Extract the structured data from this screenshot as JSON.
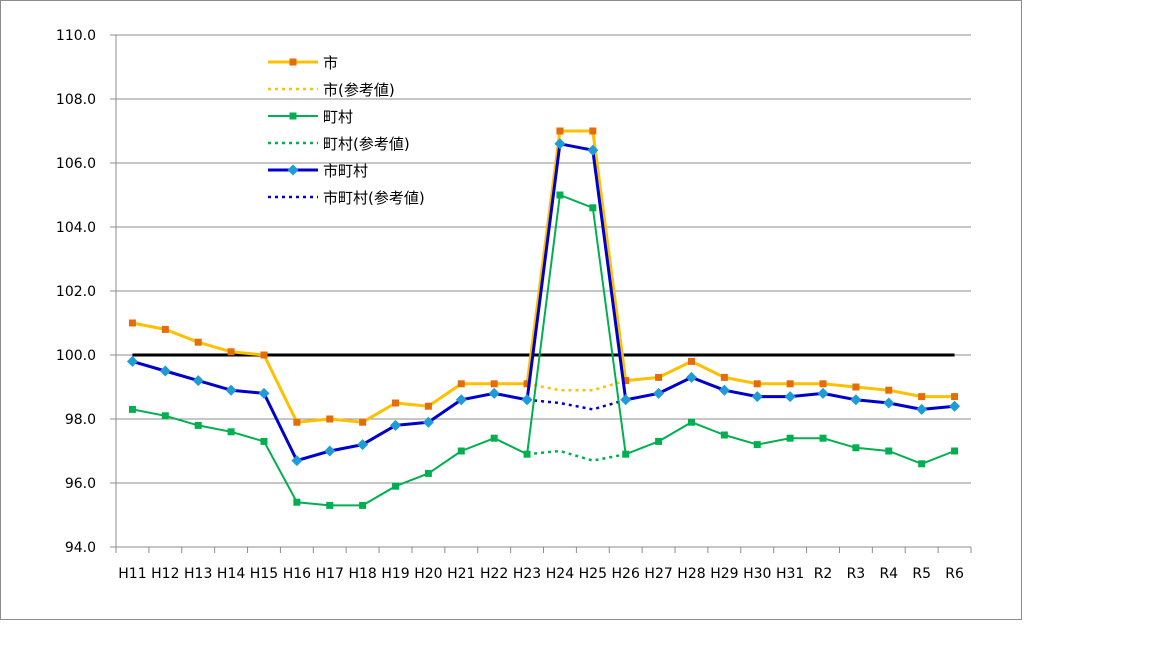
{
  "chart_data": {
    "type": "line",
    "title": "",
    "xlabel": "",
    "ylabel": "",
    "ylim": [
      94.0,
      110.0
    ],
    "yticks": [
      "94.0",
      "96.0",
      "98.0",
      "100.0",
      "102.0",
      "104.0",
      "106.0",
      "108.0",
      "110.0"
    ],
    "grid": true,
    "legend_position": "top-left-inside",
    "categories": [
      "H11",
      "H12",
      "H13",
      "H14",
      "H15",
      "H16",
      "H17",
      "H18",
      "H19",
      "H20",
      "H21",
      "H22",
      "H23",
      "H24",
      "H25",
      "H26",
      "H27",
      "H28",
      "H29",
      "H30",
      "H31",
      "R2",
      "R3",
      "R4",
      "R5",
      "R6"
    ],
    "reference_line": {
      "y": 100.0,
      "color": "#000000"
    },
    "series": [
      {
        "name": "市",
        "color": "#ffc000",
        "marker_color": "#e46c0a",
        "style": "solid",
        "marker": "square",
        "values": [
          101.0,
          100.8,
          100.4,
          100.1,
          100.0,
          97.9,
          98.0,
          97.9,
          98.5,
          98.4,
          99.1,
          99.1,
          99.1,
          107.0,
          107.0,
          99.2,
          99.3,
          99.8,
          99.3,
          99.1,
          99.1,
          99.1,
          99.0,
          98.9,
          98.7,
          98.7
        ]
      },
      {
        "name": "市(参考値)",
        "color": "#ffc000",
        "style": "dotted",
        "values": [
          null,
          null,
          null,
          null,
          null,
          null,
          null,
          null,
          null,
          null,
          null,
          null,
          99.1,
          98.9,
          98.9,
          99.2,
          null,
          null,
          null,
          null,
          null,
          null,
          null,
          null,
          null,
          null
        ]
      },
      {
        "name": "町村",
        "color": "#00b050",
        "marker_color": "#00b050",
        "style": "solid",
        "marker": "square",
        "values": [
          98.3,
          98.1,
          97.8,
          97.6,
          97.3,
          95.4,
          95.3,
          95.3,
          95.9,
          96.3,
          97.0,
          97.4,
          96.9,
          105.0,
          104.6,
          96.9,
          97.3,
          97.9,
          97.5,
          97.2,
          97.4,
          97.4,
          97.1,
          97.0,
          96.6,
          97.0
        ]
      },
      {
        "name": "町村(参考値)",
        "color": "#00b050",
        "style": "dotted",
        "values": [
          null,
          null,
          null,
          null,
          null,
          null,
          null,
          null,
          null,
          null,
          null,
          null,
          96.9,
          97.0,
          96.7,
          96.9,
          null,
          null,
          null,
          null,
          null,
          null,
          null,
          null,
          null,
          null
        ]
      },
      {
        "name": "市町村",
        "color": "#0000cc",
        "marker_color": "#1f9bd7",
        "style": "solid",
        "marker": "diamond",
        "values": [
          99.8,
          99.5,
          99.2,
          98.9,
          98.8,
          96.7,
          97.0,
          97.2,
          97.8,
          97.9,
          98.6,
          98.8,
          98.6,
          106.6,
          106.4,
          98.6,
          98.8,
          99.3,
          98.9,
          98.7,
          98.7,
          98.8,
          98.6,
          98.5,
          98.3,
          98.4
        ]
      },
      {
        "name": "市町村(参考値)",
        "color": "#0000cc",
        "style": "dotted",
        "values": [
          null,
          null,
          null,
          null,
          null,
          null,
          null,
          null,
          null,
          null,
          null,
          null,
          98.6,
          98.5,
          98.3,
          98.6,
          null,
          null,
          null,
          null,
          null,
          null,
          null,
          null,
          null,
          null
        ]
      }
    ]
  }
}
